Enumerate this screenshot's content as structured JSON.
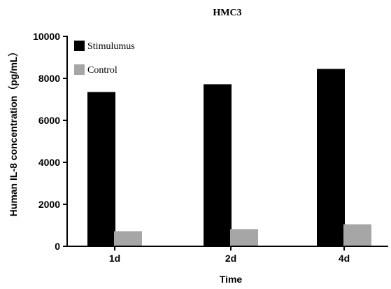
{
  "chart_data": {
    "type": "bar",
    "title": "HMC3",
    "xlabel": "Time",
    "ylabel": "Human IL-8 concentration（pg/mL）",
    "categories": [
      "1d",
      "2d",
      "4d"
    ],
    "series": [
      {
        "name": "Stimulumus",
        "values": [
          7350,
          7720,
          8450
        ],
        "color": "#000000"
      },
      {
        "name": "Control",
        "values": [
          720,
          820,
          1050
        ],
        "color": "#a6a6a6"
      }
    ],
    "ylim": [
      0,
      10000
    ],
    "yticks": [
      "0",
      "2000",
      "4000",
      "6000",
      "8000",
      "10000"
    ],
    "grid": false,
    "legend_position": "top-left"
  }
}
